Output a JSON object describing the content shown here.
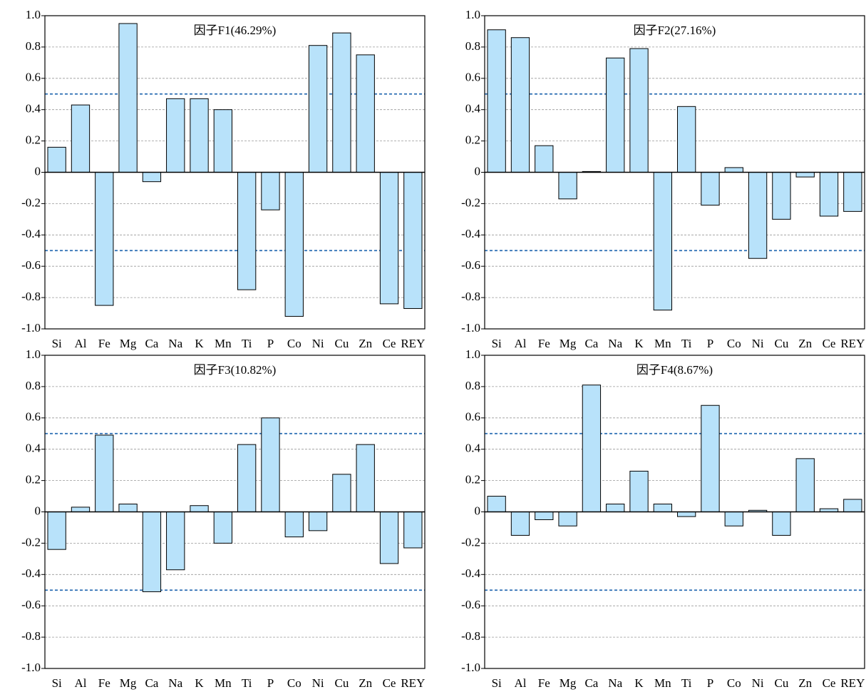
{
  "chart_data": [
    {
      "type": "bar",
      "title": "因子F1(46.29%)",
      "color": "#b8e2fa",
      "grid": true,
      "hlines": [
        0.5,
        -0.5
      ],
      "categories": [
        "Si",
        "Al",
        "Fe",
        "Mg",
        "Ca",
        "Na",
        "K",
        "Mn",
        "Ti",
        "P",
        "Co",
        "Ni",
        "Cu",
        "Zn",
        "Ce",
        "REY"
      ],
      "values": [
        0.16,
        0.43,
        -0.85,
        0.95,
        -0.06,
        0.47,
        0.47,
        0.4,
        -0.75,
        -0.24,
        -0.92,
        0.81,
        0.89,
        0.75,
        -0.84,
        -0.87
      ],
      "ylim": [
        -1,
        1
      ],
      "yticks": [
        {
          "value": -1,
          "label": "-1.0"
        },
        -0.8,
        -0.6,
        -0.4,
        -0.2,
        0,
        0.2,
        0.4,
        0.6,
        0.8,
        {
          "value": 1,
          "label": "1.0"
        }
      ]
    },
    {
      "type": "bar",
      "title": "因子F2(27.16%)",
      "color": "#b8e2fa",
      "grid": true,
      "hlines": [
        0.5,
        -0.5
      ],
      "categories": [
        "Si",
        "Al",
        "Fe",
        "Mg",
        "Ca",
        "Na",
        "K",
        "Mn",
        "Ti",
        "P",
        "Co",
        "Ni",
        "Cu",
        "Zn",
        "Ce",
        "REY"
      ],
      "values": [
        0.91,
        0.86,
        0.17,
        -0.17,
        0.005,
        0.73,
        0.79,
        -0.88,
        0.42,
        -0.21,
        0.03,
        -0.55,
        -0.3,
        -0.03,
        -0.28,
        -0.25
      ],
      "ylim": [
        -1,
        1
      ],
      "yticks": [
        {
          "value": -1,
          "label": "-1.0"
        },
        -0.8,
        -0.6,
        -0.4,
        -0.2,
        0,
        0.2,
        0.4,
        0.6,
        0.8,
        {
          "value": 1,
          "label": "1.0"
        }
      ]
    },
    {
      "type": "bar",
      "title": "因子F3(10.82%)",
      "color": "#b8e2fa",
      "grid": true,
      "hlines": [
        0.5,
        -0.5
      ],
      "categories": [
        "Si",
        "Al",
        "Fe",
        "Mg",
        "Ca",
        "Na",
        "K",
        "Mn",
        "Ti",
        "P",
        "Co",
        "Ni",
        "Cu",
        "Zn",
        "Ce",
        "REY"
      ],
      "values": [
        -0.24,
        0.03,
        0.49,
        0.05,
        -0.51,
        -0.37,
        0.04,
        -0.2,
        0.43,
        0.6,
        -0.16,
        -0.12,
        0.24,
        0.43,
        -0.33,
        -0.23
      ],
      "ylim": [
        -1,
        1
      ],
      "yticks": [
        {
          "value": -1,
          "label": "-1.0"
        },
        -0.8,
        -0.6,
        -0.4,
        -0.2,
        0,
        0.2,
        0.4,
        0.6,
        0.8,
        {
          "value": 1,
          "label": "1.0"
        }
      ]
    },
    {
      "type": "bar",
      "title": "因子F4(8.67%)",
      "color": "#b8e2fa",
      "grid": true,
      "hlines": [
        0.5,
        -0.5
      ],
      "categories": [
        "Si",
        "Al",
        "Fe",
        "Mg",
        "Ca",
        "Na",
        "K",
        "Mn",
        "Ti",
        "P",
        "Co",
        "Ni",
        "Cu",
        "Zn",
        "Ce",
        "REY"
      ],
      "values": [
        0.1,
        -0.15,
        -0.05,
        -0.09,
        0.81,
        0.05,
        0.26,
        0.05,
        -0.03,
        0.68,
        -0.09,
        0.01,
        -0.15,
        0.34,
        0.02,
        0.08
      ],
      "ylim": [
        -1,
        1
      ],
      "yticks": [
        {
          "value": -1,
          "label": "-1.0"
        },
        -0.8,
        -0.6,
        -0.4,
        -0.2,
        0,
        0.2,
        0.4,
        0.6,
        0.8,
        {
          "value": 1,
          "label": "1.0"
        }
      ]
    }
  ]
}
